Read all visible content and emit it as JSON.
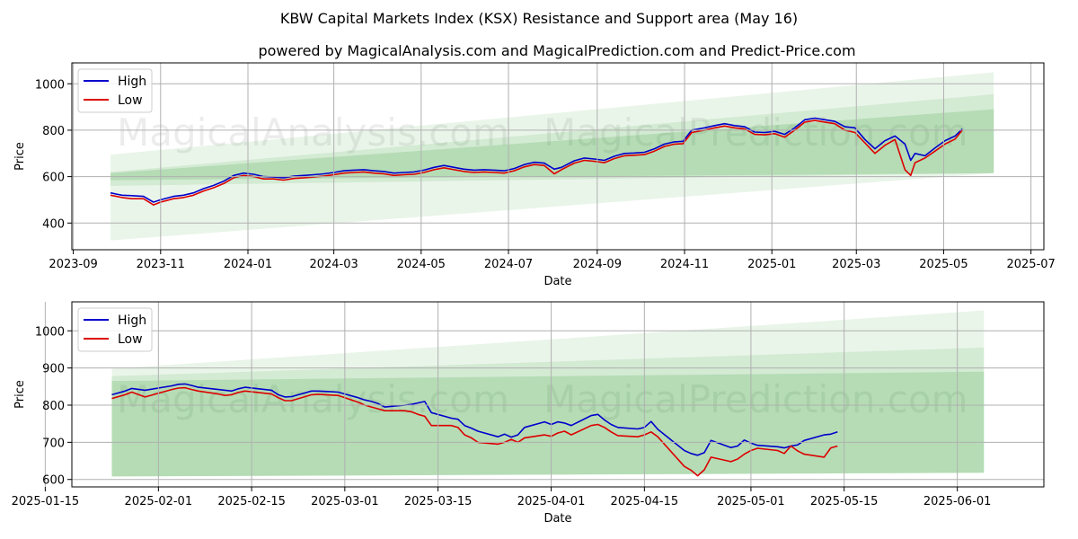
{
  "header": {
    "title": "KBW Capital Markets Index (KSX) Resistance and Support area (May 16)",
    "subtitle": "powered by MagicalAnalysis.com and MagicalPrediction.com and Predict-Price.com"
  },
  "watermark": {
    "left": "MagicalAnalysis.com",
    "right": "MagicalPrediction.com"
  },
  "colors": {
    "high": "#0000cc",
    "low": "#dd0000",
    "band": "#2e9e2e"
  },
  "chart_data": [
    {
      "type": "line",
      "title": "",
      "xlabel": "Date",
      "ylabel": "Price",
      "xlim": [
        "2023-08-31",
        "2025-07-10"
      ],
      "ylim": [
        285,
        1090
      ],
      "xticks": [
        "2023-09",
        "2023-11",
        "2024-01",
        "2024-03",
        "2024-05",
        "2024-07",
        "2024-09",
        "2024-11",
        "2025-01",
        "2025-03",
        "2025-05",
        "2025-07"
      ],
      "xtick_dates": [
        "2023-09-01",
        "2023-11-01",
        "2024-01-01",
        "2024-03-01",
        "2024-05-01",
        "2024-07-01",
        "2024-09-01",
        "2024-11-01",
        "2025-01-01",
        "2025-03-01",
        "2025-05-01",
        "2025-07-01"
      ],
      "yticks": [
        400,
        600,
        800,
        1000
      ],
      "grid": true,
      "legend": "upper-left",
      "bands": [
        {
          "x_start": "2023-09-27",
          "x_end": "2025-06-05",
          "upper": [
            695,
            1050
          ],
          "lower": [
            325,
            615
          ],
          "opacity": 0.1
        },
        {
          "x_start": "2023-09-27",
          "x_end": "2025-06-05",
          "upper": [
            620,
            955
          ],
          "lower": [
            560,
            615
          ],
          "opacity": 0.12
        },
        {
          "x_start": "2023-09-27",
          "x_end": "2025-06-05",
          "upper": [
            615,
            890
          ],
          "lower": [
            585,
            615
          ],
          "opacity": 0.18
        }
      ],
      "series": [
        {
          "name": "High",
          "x": [
            "2023-09-27",
            "2023-10-05",
            "2023-10-12",
            "2023-10-20",
            "2023-10-27",
            "2023-11-01",
            "2023-11-10",
            "2023-11-17",
            "2023-11-24",
            "2023-12-01",
            "2023-12-08",
            "2023-12-15",
            "2023-12-22",
            "2023-12-29",
            "2024-01-05",
            "2024-01-12",
            "2024-01-19",
            "2024-01-26",
            "2024-02-02",
            "2024-02-09",
            "2024-02-16",
            "2024-02-23",
            "2024-03-01",
            "2024-03-08",
            "2024-03-15",
            "2024-03-22",
            "2024-03-29",
            "2024-04-05",
            "2024-04-12",
            "2024-04-19",
            "2024-04-26",
            "2024-05-03",
            "2024-05-10",
            "2024-05-17",
            "2024-05-24",
            "2024-05-31",
            "2024-06-07",
            "2024-06-14",
            "2024-06-21",
            "2024-06-28",
            "2024-07-05",
            "2024-07-12",
            "2024-07-19",
            "2024-07-26",
            "2024-08-02",
            "2024-08-07",
            "2024-08-16",
            "2024-08-23",
            "2024-08-30",
            "2024-09-06",
            "2024-09-13",
            "2024-09-20",
            "2024-09-27",
            "2024-10-04",
            "2024-10-11",
            "2024-10-18",
            "2024-10-25",
            "2024-10-31",
            "2024-11-06",
            "2024-11-15",
            "2024-11-22",
            "2024-11-29",
            "2024-12-06",
            "2024-12-13",
            "2024-12-20",
            "2024-12-27",
            "2025-01-03",
            "2025-01-10",
            "2025-01-17",
            "2025-01-24",
            "2025-01-31",
            "2025-02-07",
            "2025-02-14",
            "2025-02-21",
            "2025-02-28",
            "2025-03-07",
            "2025-03-14",
            "2025-03-21",
            "2025-03-28",
            "2025-04-04",
            "2025-04-08",
            "2025-04-11",
            "2025-04-18",
            "2025-04-25",
            "2025-05-02",
            "2025-05-09",
            "2025-05-14"
          ],
          "y": [
            530,
            520,
            518,
            515,
            490,
            500,
            515,
            520,
            530,
            548,
            562,
            580,
            605,
            615,
            610,
            600,
            598,
            595,
            602,
            605,
            608,
            612,
            618,
            625,
            628,
            630,
            625,
            622,
            615,
            618,
            620,
            628,
            640,
            648,
            640,
            632,
            628,
            630,
            628,
            625,
            635,
            652,
            662,
            658,
            632,
            640,
            668,
            680,
            676,
            670,
            688,
            700,
            702,
            705,
            720,
            740,
            750,
            752,
            800,
            810,
            820,
            828,
            820,
            815,
            792,
            790,
            795,
            782,
            810,
            845,
            852,
            845,
            838,
            815,
            810,
            760,
            720,
            755,
            775,
            740,
            670,
            700,
            690,
            724,
            755,
            775,
            805
          ]
        },
        {
          "name": "Low",
          "x": [
            "2023-09-27",
            "2023-10-05",
            "2023-10-12",
            "2023-10-20",
            "2023-10-27",
            "2023-11-01",
            "2023-11-10",
            "2023-11-17",
            "2023-11-24",
            "2023-12-01",
            "2023-12-08",
            "2023-12-15",
            "2023-12-22",
            "2023-12-29",
            "2024-01-05",
            "2024-01-12",
            "2024-01-19",
            "2024-01-26",
            "2024-02-02",
            "2024-02-09",
            "2024-02-16",
            "2024-02-23",
            "2024-03-01",
            "2024-03-08",
            "2024-03-15",
            "2024-03-22",
            "2024-03-29",
            "2024-04-05",
            "2024-04-12",
            "2024-04-19",
            "2024-04-26",
            "2024-05-03",
            "2024-05-10",
            "2024-05-17",
            "2024-05-24",
            "2024-05-31",
            "2024-06-07",
            "2024-06-14",
            "2024-06-21",
            "2024-06-28",
            "2024-07-05",
            "2024-07-12",
            "2024-07-19",
            "2024-07-26",
            "2024-08-02",
            "2024-08-07",
            "2024-08-16",
            "2024-08-23",
            "2024-08-30",
            "2024-09-06",
            "2024-09-13",
            "2024-09-20",
            "2024-09-27",
            "2024-10-04",
            "2024-10-11",
            "2024-10-18",
            "2024-10-25",
            "2024-10-31",
            "2024-11-06",
            "2024-11-15",
            "2024-11-22",
            "2024-11-29",
            "2024-12-06",
            "2024-12-13",
            "2024-12-20",
            "2024-12-27",
            "2025-01-03",
            "2025-01-10",
            "2025-01-17",
            "2025-01-24",
            "2025-01-31",
            "2025-02-07",
            "2025-02-14",
            "2025-02-21",
            "2025-02-28",
            "2025-03-07",
            "2025-03-14",
            "2025-03-21",
            "2025-03-28",
            "2025-04-04",
            "2025-04-08",
            "2025-04-11",
            "2025-04-18",
            "2025-04-25",
            "2025-05-02",
            "2025-05-09",
            "2025-05-14"
          ],
          "y": [
            520,
            510,
            505,
            505,
            478,
            490,
            505,
            510,
            520,
            538,
            552,
            570,
            595,
            605,
            600,
            590,
            590,
            585,
            592,
            595,
            598,
            602,
            608,
            615,
            618,
            620,
            615,
            612,
            605,
            608,
            610,
            618,
            630,
            638,
            630,
            622,
            618,
            620,
            618,
            615,
            625,
            642,
            652,
            648,
            612,
            630,
            658,
            670,
            666,
            660,
            678,
            690,
            692,
            695,
            710,
            730,
            740,
            742,
            790,
            800,
            810,
            818,
            810,
            805,
            782,
            780,
            785,
            770,
            800,
            835,
            842,
            835,
            828,
            800,
            790,
            745,
            700,
            735,
            760,
            630,
            605,
            660,
            680,
            710,
            740,
            762,
            800
          ]
        }
      ]
    },
    {
      "type": "line",
      "title": "",
      "xlabel": "Date",
      "ylabel": "Price",
      "xlim": [
        "2025-01-19",
        "2025-06-14"
      ],
      "ylim": [
        580,
        1078
      ],
      "xticks": [
        "2025-01-15",
        "2025-02-01",
        "2025-02-15",
        "2025-03-01",
        "2025-03-15",
        "2025-04-01",
        "2025-04-15",
        "2025-05-01",
        "2025-05-15",
        "2025-06-01"
      ],
      "xtick_dates": [
        "2025-01-15",
        "2025-02-01",
        "2025-02-15",
        "2025-03-01",
        "2025-03-15",
        "2025-04-01",
        "2025-04-15",
        "2025-05-01",
        "2025-05-15",
        "2025-06-01"
      ],
      "yticks": [
        600,
        700,
        800,
        900,
        1000
      ],
      "grid": true,
      "legend": "upper-left",
      "bands": [
        {
          "x_start": "2025-01-25",
          "x_end": "2025-06-05",
          "upper": [
            898,
            1055
          ],
          "lower": [
            608,
            618
          ],
          "opacity": 0.1
        },
        {
          "x_start": "2025-01-25",
          "x_end": "2025-06-05",
          "upper": [
            878,
            955
          ],
          "lower": [
            608,
            618
          ],
          "opacity": 0.12
        },
        {
          "x_start": "2025-01-25",
          "x_end": "2025-06-05",
          "upper": [
            865,
            890
          ],
          "lower": [
            608,
            618
          ],
          "opacity": 0.18
        }
      ],
      "series": [
        {
          "name": "High",
          "x": [
            "2025-01-25",
            "2025-01-27",
            "2025-01-28",
            "2025-01-30",
            "2025-02-03",
            "2025-02-04",
            "2025-02-05",
            "2025-02-06",
            "2025-02-07",
            "2025-02-10",
            "2025-02-11",
            "2025-02-12",
            "2025-02-13",
            "2025-02-14",
            "2025-02-18",
            "2025-02-19",
            "2025-02-20",
            "2025-02-21",
            "2025-02-24",
            "2025-02-25",
            "2025-02-26",
            "2025-02-27",
            "2025-02-28",
            "2025-03-03",
            "2025-03-04",
            "2025-03-05",
            "2025-03-06",
            "2025-03-07",
            "2025-03-10",
            "2025-03-11",
            "2025-03-12",
            "2025-03-13",
            "2025-03-14",
            "2025-03-17",
            "2025-03-18",
            "2025-03-19",
            "2025-03-20",
            "2025-03-21",
            "2025-03-24",
            "2025-03-25",
            "2025-03-26",
            "2025-03-27",
            "2025-03-28",
            "2025-03-31",
            "2025-04-01",
            "2025-04-02",
            "2025-04-03",
            "2025-04-04",
            "2025-04-07",
            "2025-04-08",
            "2025-04-09",
            "2025-04-10",
            "2025-04-11",
            "2025-04-14",
            "2025-04-15",
            "2025-04-16",
            "2025-04-17",
            "2025-04-21",
            "2025-04-22",
            "2025-04-23",
            "2025-04-24",
            "2025-04-25",
            "2025-04-28",
            "2025-04-29",
            "2025-04-30",
            "2025-05-01",
            "2025-05-02",
            "2025-05-05",
            "2025-05-06",
            "2025-05-07",
            "2025-05-08",
            "2025-05-09",
            "2025-05-12",
            "2025-05-13",
            "2025-05-14"
          ],
          "y": [
            828,
            838,
            845,
            840,
            852,
            856,
            857,
            853,
            848,
            842,
            840,
            838,
            844,
            848,
            840,
            828,
            822,
            823,
            838,
            838,
            837,
            836,
            835,
            820,
            814,
            810,
            804,
            795,
            800,
            802,
            806,
            810,
            780,
            765,
            762,
            745,
            738,
            730,
            715,
            722,
            714,
            720,
            740,
            755,
            748,
            755,
            752,
            745,
            772,
            775,
            760,
            748,
            740,
            736,
            740,
            756,
            735,
            678,
            670,
            665,
            672,
            705,
            686,
            690,
            706,
            698,
            692,
            688,
            685,
            690,
            693,
            705,
            720,
            722,
            728
          ]
        },
        {
          "name": "Low",
          "x": [
            "2025-01-25",
            "2025-01-27",
            "2025-01-28",
            "2025-01-30",
            "2025-02-03",
            "2025-02-04",
            "2025-02-05",
            "2025-02-06",
            "2025-02-07",
            "2025-02-10",
            "2025-02-11",
            "2025-02-12",
            "2025-02-13",
            "2025-02-14",
            "2025-02-18",
            "2025-02-19",
            "2025-02-20",
            "2025-02-21",
            "2025-02-24",
            "2025-02-25",
            "2025-02-26",
            "2025-02-27",
            "2025-02-28",
            "2025-03-03",
            "2025-03-04",
            "2025-03-05",
            "2025-03-06",
            "2025-03-07",
            "2025-03-10",
            "2025-03-11",
            "2025-03-12",
            "2025-03-13",
            "2025-03-14",
            "2025-03-17",
            "2025-03-18",
            "2025-03-19",
            "2025-03-20",
            "2025-03-21",
            "2025-03-24",
            "2025-03-25",
            "2025-03-26",
            "2025-03-27",
            "2025-03-28",
            "2025-03-31",
            "2025-04-01",
            "2025-04-02",
            "2025-04-03",
            "2025-04-04",
            "2025-04-07",
            "2025-04-08",
            "2025-04-09",
            "2025-04-10",
            "2025-04-11",
            "2025-04-14",
            "2025-04-15",
            "2025-04-16",
            "2025-04-17",
            "2025-04-21",
            "2025-04-22",
            "2025-04-23",
            "2025-04-24",
            "2025-04-25",
            "2025-04-28",
            "2025-04-29",
            "2025-04-30",
            "2025-05-01",
            "2025-05-02",
            "2025-05-05",
            "2025-05-06",
            "2025-05-07",
            "2025-05-08",
            "2025-05-09",
            "2025-05-12",
            "2025-05-13",
            "2025-05-14"
          ],
          "y": [
            818,
            828,
            835,
            822,
            842,
            846,
            847,
            842,
            838,
            830,
            826,
            828,
            834,
            838,
            830,
            820,
            812,
            812,
            828,
            829,
            828,
            827,
            826,
            808,
            800,
            795,
            790,
            785,
            785,
            782,
            775,
            770,
            745,
            745,
            740,
            720,
            712,
            700,
            695,
            700,
            708,
            700,
            712,
            720,
            716,
            725,
            730,
            720,
            745,
            748,
            740,
            728,
            718,
            715,
            720,
            728,
            715,
            635,
            625,
            610,
            626,
            660,
            648,
            655,
            668,
            678,
            684,
            678,
            670,
            690,
            677,
            668,
            660,
            685,
            690
          ]
        }
      ]
    }
  ]
}
